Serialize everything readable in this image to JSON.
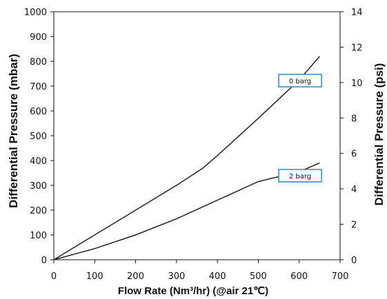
{
  "chart_data": {
    "type": "line",
    "xlabel": "Flow Rate (Nm³/hr) (@air 21℃)",
    "ylabel_left": "Differential Pressure (mbar)",
    "ylabel_right": "Differential Pressure (psi)",
    "xlim": [
      0,
      700
    ],
    "ylim_left": [
      0,
      1000
    ],
    "ylim_right": [
      0,
      14
    ],
    "x_ticks": [
      "0",
      "100",
      "200",
      "300",
      "400",
      "500",
      "600",
      "700"
    ],
    "y_ticks_left": [
      "0",
      "100",
      "200",
      "300",
      "400",
      "500",
      "600",
      "700",
      "800",
      "900",
      "1000"
    ],
    "y_ticks_right": [
      "0",
      "2",
      "4",
      "6",
      "8",
      "10",
      "12",
      "14"
    ],
    "grid": false,
    "series": [
      {
        "name": "0 barg",
        "x": [
          0,
          100,
          200,
          300,
          365,
          400,
          500,
          600,
          650
        ],
        "y": [
          0,
          100,
          200,
          300,
          370,
          420,
          570,
          725,
          820
        ]
      },
      {
        "name": "2 barg",
        "x": [
          0,
          100,
          200,
          300,
          400,
          500,
          600,
          650
        ],
        "y": [
          0,
          45,
          100,
          165,
          240,
          315,
          355,
          390
        ]
      }
    ],
    "annotation_color": "#1f8fd1"
  }
}
